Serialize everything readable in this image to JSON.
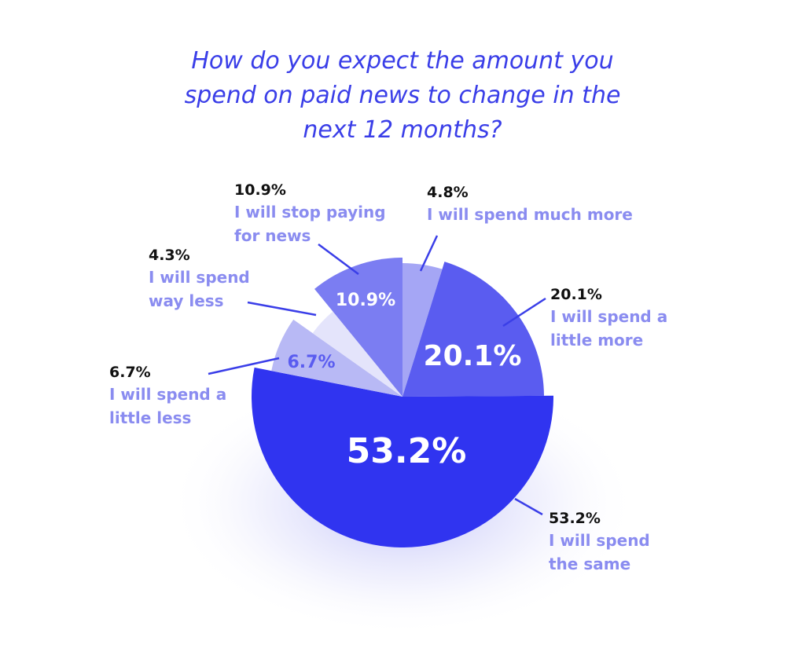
{
  "chart_data": {
    "type": "pie",
    "title": "How do you expect the amount you spend on paid news to change in the next 12 months?",
    "categories": [
      "I will spend much more",
      "I will spend a little more",
      "I will spend the same",
      "I will spend a little less",
      "I will spend way less",
      "I will stop paying for news"
    ],
    "values": [
      4.8,
      20.1,
      53.2,
      6.7,
      4.3,
      10.9
    ],
    "value_labels": [
      "4.8%",
      "20.1%",
      "53.2%",
      "6.7%",
      "4.3%",
      "10.9%"
    ],
    "colors": [
      "#a5a6f5",
      "#5a5cf0",
      "#3034f0",
      "#b8b9f5",
      "#e4e4fb",
      "#7b7df2"
    ]
  }
}
